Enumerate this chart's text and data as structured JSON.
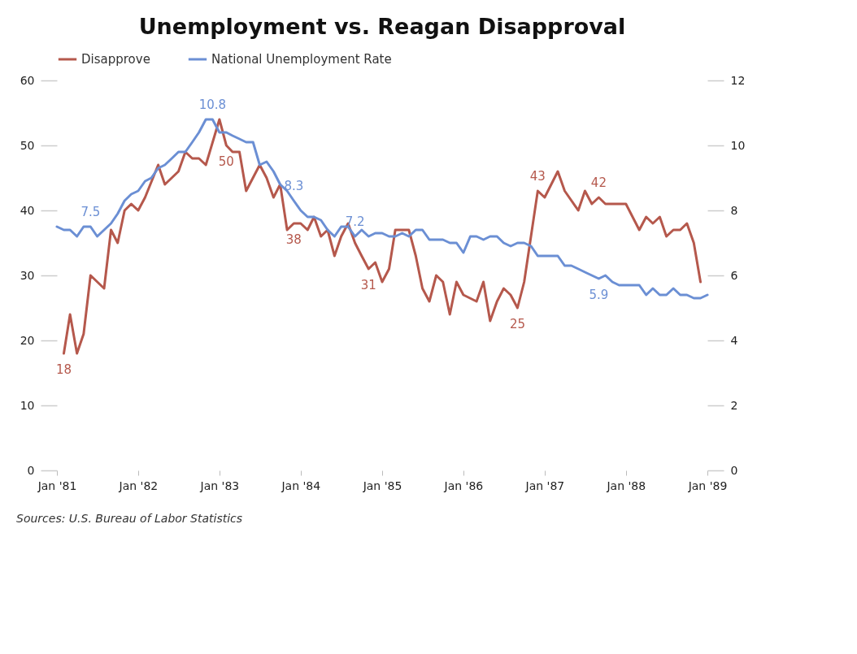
{
  "chart_data": {
    "type": "line",
    "title": "Unemployment vs. Reagan Disapproval",
    "x": [
      "1981-01",
      "1981-02",
      "1981-03",
      "1981-04",
      "1981-05",
      "1981-06",
      "1981-07",
      "1981-08",
      "1981-09",
      "1981-10",
      "1981-11",
      "1981-12",
      "1982-01",
      "1982-02",
      "1982-03",
      "1982-04",
      "1982-05",
      "1982-06",
      "1982-07",
      "1982-08",
      "1982-09",
      "1982-10",
      "1982-11",
      "1982-12",
      "1983-01",
      "1983-02",
      "1983-03",
      "1983-04",
      "1983-05",
      "1983-06",
      "1983-07",
      "1983-08",
      "1983-09",
      "1983-10",
      "1983-11",
      "1983-12",
      "1984-01",
      "1984-02",
      "1984-03",
      "1984-04",
      "1984-05",
      "1984-06",
      "1984-07",
      "1984-08",
      "1984-09",
      "1984-10",
      "1984-11",
      "1984-12",
      "1985-01",
      "1985-02",
      "1985-03",
      "1985-04",
      "1985-05",
      "1985-06",
      "1985-07",
      "1985-08",
      "1985-09",
      "1985-10",
      "1985-11",
      "1985-12",
      "1986-01",
      "1986-02",
      "1986-03",
      "1986-04",
      "1986-05",
      "1986-06",
      "1986-07",
      "1986-08",
      "1986-09",
      "1986-10",
      "1986-11",
      "1986-12",
      "1987-01",
      "1987-02",
      "1987-03",
      "1987-04",
      "1987-05",
      "1987-06",
      "1987-07",
      "1987-08",
      "1987-09",
      "1987-10",
      "1987-11",
      "1987-12",
      "1988-01",
      "1988-02",
      "1988-03",
      "1988-04",
      "1988-05",
      "1988-06",
      "1988-07",
      "1988-08",
      "1988-09",
      "1988-10",
      "1988-11",
      "1988-12",
      "1989-01"
    ],
    "series": [
      {
        "name": "Disapprove",
        "color": "#b5584c",
        "axis": "y",
        "x": [
          "1981-02",
          "1981-03",
          "1981-04",
          "1981-05",
          "1981-06",
          "1981-08",
          "1981-09",
          "1981-10",
          "1981-11",
          "1981-12",
          "1982-01",
          "1982-02",
          "1982-04",
          "1982-05",
          "1982-07",
          "1982-08",
          "1982-09",
          "1982-10",
          "1982-11",
          "1983-01",
          "1983-02",
          "1983-03",
          "1983-04",
          "1983-05",
          "1983-07",
          "1983-08",
          "1983-09",
          "1983-10",
          "1983-11",
          "1983-12",
          "1984-01",
          "1984-02",
          "1984-03",
          "1984-04",
          "1984-05",
          "1984-06",
          "1984-07",
          "1984-08",
          "1984-09",
          "1984-10",
          "1984-11",
          "1984-12",
          "1985-01",
          "1985-02",
          "1985-03",
          "1985-05",
          "1985-06",
          "1985-07",
          "1985-08",
          "1985-09",
          "1985-10",
          "1985-11",
          "1985-12",
          "1986-01",
          "1986-03",
          "1986-04",
          "1986-05",
          "1986-06",
          "1986-07",
          "1986-08",
          "1986-09",
          "1986-10",
          "1986-12",
          "1987-01",
          "1987-03",
          "1987-04",
          "1987-06",
          "1987-07",
          "1987-08",
          "1987-09",
          "1987-10",
          "1988-01",
          "1988-03",
          "1988-04",
          "1988-05",
          "1988-06",
          "1988-07",
          "1988-08",
          "1988-09",
          "1988-10",
          "1988-11",
          "1988-12"
        ],
        "values": [
          18,
          24,
          18,
          21,
          30,
          28,
          37,
          35,
          40,
          41,
          40,
          42,
          47,
          44,
          46,
          49,
          48,
          48,
          47,
          54,
          50,
          49,
          49,
          43,
          47,
          45,
          42,
          44,
          37,
          38,
          38,
          37,
          39,
          36,
          37,
          33,
          36,
          38,
          35,
          33,
          31,
          32,
          29,
          31,
          37,
          37,
          33,
          28,
          26,
          30,
          29,
          24,
          29,
          27,
          26,
          29,
          23,
          26,
          28,
          27,
          25,
          29,
          43,
          42,
          46,
          43,
          40,
          43,
          41,
          42,
          41,
          41,
          37,
          39,
          38,
          39,
          36,
          37,
          37,
          38,
          35,
          29
        ],
        "value_labels": [
          "18",
          null,
          null,
          null,
          null,
          null,
          null,
          null,
          null,
          null,
          null,
          null,
          null,
          null,
          null,
          null,
          null,
          null,
          null,
          null,
          "50",
          null,
          null,
          null,
          null,
          null,
          null,
          null,
          null,
          "38",
          null,
          null,
          null,
          null,
          null,
          null,
          null,
          null,
          null,
          null,
          "31",
          null,
          null,
          null,
          null,
          null,
          null,
          null,
          null,
          null,
          null,
          null,
          null,
          null,
          null,
          null,
          null,
          null,
          null,
          null,
          "25",
          null,
          "43",
          null,
          null,
          null,
          null,
          null,
          null,
          "42",
          null,
          null,
          null,
          null,
          null,
          null,
          null,
          null,
          null,
          null,
          null,
          null
        ]
      },
      {
        "name": "National Unemployment Rate",
        "color": "#6b8fd4",
        "axis": "y2",
        "values": [
          7.5,
          7.4,
          7.4,
          7.2,
          7.5,
          7.5,
          7.2,
          7.4,
          7.6,
          7.9,
          8.3,
          8.5,
          8.6,
          8.9,
          9.0,
          9.3,
          9.4,
          9.6,
          9.8,
          9.8,
          10.1,
          10.4,
          10.8,
          10.8,
          10.4,
          10.4,
          10.3,
          10.2,
          10.1,
          10.1,
          9.4,
          9.5,
          9.2,
          8.8,
          8.6,
          8.3,
          8.0,
          7.8,
          7.8,
          7.7,
          7.4,
          7.2,
          7.5,
          7.5,
          7.2,
          7.4,
          7.2,
          7.3,
          7.3,
          7.2,
          7.2,
          7.3,
          7.2,
          7.4,
          7.4,
          7.1,
          7.1,
          7.1,
          7.0,
          7.0,
          6.7,
          7.2,
          7.2,
          7.1,
          7.2,
          7.2,
          7.0,
          6.9,
          7.0,
          7.0,
          6.9,
          6.6,
          6.6,
          6.6,
          6.6,
          6.3,
          6.3,
          6.2,
          6.1,
          6.0,
          5.9,
          6.0,
          5.8,
          5.7,
          5.7,
          5.7,
          5.7,
          5.4,
          5.6,
          5.4,
          5.4,
          5.6,
          5.4,
          5.4,
          5.3,
          5.3,
          5.4
        ],
        "value_labels": [
          null,
          null,
          null,
          null,
          null,
          "7.5",
          null,
          null,
          null,
          null,
          null,
          null,
          null,
          null,
          null,
          null,
          null,
          null,
          null,
          null,
          null,
          null,
          null,
          "10.8",
          null,
          null,
          null,
          null,
          null,
          null,
          null,
          null,
          null,
          null,
          null,
          "8.3",
          null,
          null,
          null,
          null,
          null,
          null,
          null,
          null,
          "7.2",
          null,
          null,
          null,
          null,
          null,
          null,
          null,
          null,
          null,
          null,
          null,
          null,
          null,
          null,
          null,
          null,
          null,
          null,
          null,
          null,
          null,
          null,
          null,
          null,
          null,
          null,
          null,
          null,
          null,
          null,
          null,
          null,
          null,
          null,
          null,
          "5.9",
          null,
          null,
          null,
          null,
          null,
          null,
          null,
          null,
          null,
          null,
          null,
          null,
          null,
          null,
          null,
          null
        ]
      }
    ],
    "xlim": [
      "1981-01",
      "1989-01"
    ],
    "xticks": [
      {
        "value": "1981-01",
        "label": "Jan '81"
      },
      {
        "value": "1982-01",
        "label": "Jan '82"
      },
      {
        "value": "1983-01",
        "label": "Jan '83"
      },
      {
        "value": "1984-01",
        "label": "Jan '84"
      },
      {
        "value": "1985-01",
        "label": "Jan '85"
      },
      {
        "value": "1986-01",
        "label": "Jan '86"
      },
      {
        "value": "1987-01",
        "label": "Jan '87"
      },
      {
        "value": "1988-01",
        "label": "Jan '88"
      },
      {
        "value": "1989-01",
        "label": "Jan '89"
      }
    ],
    "ylim": [
      0,
      60
    ],
    "yticks": [
      0,
      10,
      20,
      30,
      40,
      50,
      60
    ],
    "y2lim": [
      0,
      12
    ],
    "y2ticks": [
      0,
      2,
      4,
      6,
      8,
      10,
      12
    ],
    "legend": "top",
    "grid": false,
    "line_style": "solid",
    "marker": "none",
    "annotations": [
      "Sources: U.S. Bureau of Labor Statistics"
    ]
  }
}
